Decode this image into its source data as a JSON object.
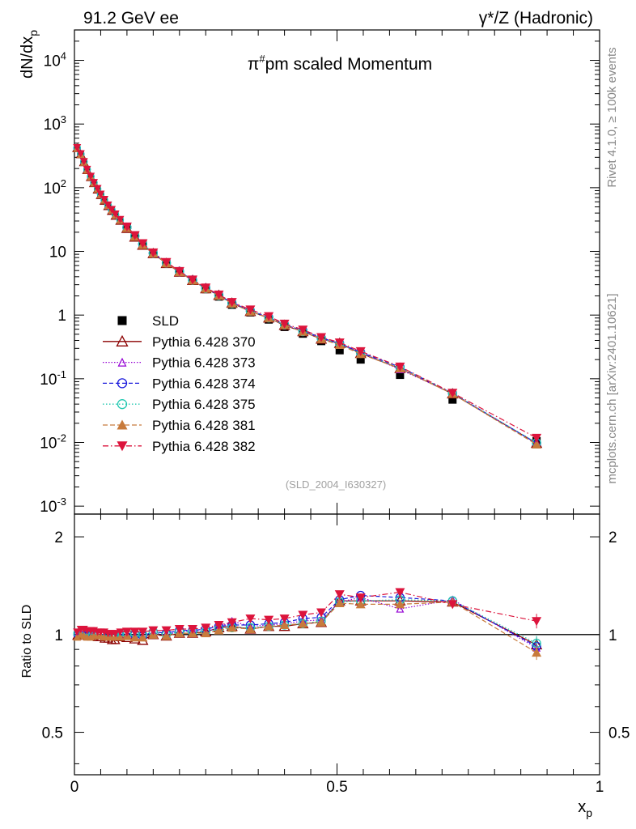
{
  "header": {
    "left": "91.2 GeV ee",
    "right": "γ*/Z (Hadronic)"
  },
  "side": {
    "rivet": "Rivet 4.1.0, ≥ 100k events",
    "mcplots": "mcplots.cern.ch [arXiv:2401.10621]"
  },
  "chart_data": {
    "type": "scatter",
    "title": "π^#pm scaled Momentum",
    "title_main": "π",
    "title_sup": "#",
    "title_rest": "pm scaled Momentum",
    "analysis_id": "(SLD_2004_I630327)",
    "xlabel": "x",
    "xlabel_sub": "p",
    "ylabel": "dN/dx",
    "ylabel_sub": "p",
    "ratio_ylabel": "Ratio to SLD",
    "xlim": [
      0,
      1
    ],
    "ylim": [
      0.00075,
      30000
    ],
    "ratio_ylim": [
      0.37,
      2.35
    ],
    "x_ticks": [
      "0",
      "0.5",
      "1"
    ],
    "y_ticks": [
      "10^-3",
      "10^-2",
      "10^-1",
      "1",
      "10",
      "10^2",
      "10^3",
      "10^4"
    ],
    "ratio_ticks": [
      "0.5",
      "1",
      "2"
    ],
    "x": [
      0.005,
      0.012,
      0.018,
      0.024,
      0.031,
      0.037,
      0.044,
      0.05,
      0.057,
      0.064,
      0.071,
      0.078,
      0.087,
      0.1,
      0.115,
      0.13,
      0.15,
      0.175,
      0.2,
      0.225,
      0.25,
      0.275,
      0.3,
      0.335,
      0.37,
      0.4,
      0.435,
      0.47,
      0.505,
      0.545,
      0.62,
      0.72,
      0.88
    ],
    "series": [
      {
        "name": "SLD",
        "values": [
          420,
          330,
          250,
          190,
          148,
          118,
          95,
          78,
          64,
          53,
          45,
          38,
          31,
          23.5,
          17.3,
          13,
          9.2,
          6.5,
          4.7,
          3.45,
          2.55,
          1.95,
          1.45,
          1.1,
          0.85,
          0.65,
          0.51,
          0.39,
          0.28,
          0.2,
          0.115,
          0.047,
          0.0105
        ],
        "ratio": [
          1,
          1,
          1,
          1,
          1,
          1,
          1,
          1,
          1,
          1,
          1,
          1,
          1,
          1,
          1,
          1,
          1,
          1,
          1,
          1,
          1,
          1,
          1,
          1,
          1,
          1,
          1,
          1,
          1,
          1,
          1,
          1,
          1
        ]
      },
      {
        "name": "Pythia 6.428 370",
        "values": [
          415,
          333,
          250,
          188,
          146,
          117,
          93,
          76,
          62,
          51,
          43,
          36,
          30,
          23,
          16.8,
          12.5,
          9.25,
          6.45,
          4.73,
          3.5,
          2.6,
          2.04,
          1.54,
          1.14,
          0.9,
          0.69,
          0.55,
          0.42,
          0.36,
          0.25,
          0.145,
          0.058,
          0.0097
        ],
        "ratio": [
          0.99,
          1.01,
          1.0,
          0.99,
          0.99,
          0.99,
          0.98,
          0.98,
          0.97,
          0.97,
          0.96,
          0.96,
          0.98,
          0.98,
          0.97,
          0.96,
          1.0,
          0.99,
          1.01,
          1.01,
          1.02,
          1.05,
          1.06,
          1.04,
          1.06,
          1.06,
          1.08,
          1.09,
          1.27,
          1.27,
          1.27,
          1.26,
          0.93
        ]
      },
      {
        "name": "Pythia 6.428 373",
        "values": [
          420,
          338,
          255,
          191,
          149,
          119,
          95,
          78,
          63,
          52,
          44,
          37,
          30.5,
          23.5,
          17.2,
          12.8,
          9.3,
          6.5,
          4.8,
          3.55,
          2.6,
          2.05,
          1.6,
          1.16,
          0.91,
          0.7,
          0.56,
          0.43,
          0.35,
          0.26,
          0.14,
          0.059,
          0.0098
        ],
        "ratio": [
          1.0,
          1.02,
          1.02,
          1.0,
          1.0,
          1.0,
          0.99,
          0.99,
          0.99,
          0.98,
          0.98,
          0.98,
          0.99,
          1.0,
          0.99,
          0.98,
          1.01,
          1.0,
          1.02,
          1.03,
          1.02,
          1.05,
          1.1,
          1.06,
          1.07,
          1.08,
          1.1,
          1.11,
          1.26,
          1.3,
          1.2,
          1.28,
          0.91
        ]
      },
      {
        "name": "Pythia 6.428 374",
        "values": [
          418,
          336,
          254,
          192,
          149,
          119,
          95,
          78,
          64,
          52,
          44.5,
          37.5,
          31,
          23.7,
          17.4,
          13,
          9.4,
          6.6,
          4.85,
          3.55,
          2.65,
          2.06,
          1.55,
          1.17,
          0.92,
          0.71,
          0.57,
          0.44,
          0.36,
          0.26,
          0.152,
          0.059,
          0.0097
        ],
        "ratio": [
          1.0,
          1.02,
          1.02,
          1.01,
          1.0,
          1.0,
          1.0,
          1.0,
          1.0,
          0.99,
          0.99,
          0.99,
          1.0,
          1.01,
          1.0,
          0.99,
          1.02,
          1.01,
          1.03,
          1.03,
          1.04,
          1.06,
          1.07,
          1.07,
          1.08,
          1.09,
          1.12,
          1.13,
          1.28,
          1.32,
          1.3,
          1.27,
          0.92
        ]
      },
      {
        "name": "Pythia 6.428 375",
        "values": [
          422,
          340,
          256,
          193,
          150,
          120,
          96,
          79,
          64.5,
          53,
          45,
          38,
          31.2,
          23.8,
          17.5,
          13.1,
          9.35,
          6.55,
          4.8,
          3.52,
          2.6,
          2.02,
          1.52,
          1.15,
          0.9,
          0.7,
          0.55,
          0.43,
          0.35,
          0.25,
          0.148,
          0.059,
          0.0099
        ],
        "ratio": [
          1.01,
          1.03,
          1.02,
          1.02,
          1.01,
          1.02,
          1.01,
          1.01,
          1.01,
          1.0,
          1.0,
          1.0,
          1.01,
          1.01,
          1.01,
          1.0,
          1.02,
          1.0,
          1.02,
          1.02,
          1.02,
          1.04,
          1.05,
          1.05,
          1.06,
          1.07,
          1.08,
          1.1,
          1.26,
          1.27,
          1.28,
          1.27,
          0.94
        ]
      },
      {
        "name": "Pythia 6.428 381",
        "values": [
          410,
          330,
          248,
          187,
          146,
          117,
          94,
          77,
          63,
          52,
          44,
          37,
          30.5,
          23.3,
          17,
          12.7,
          9.3,
          6.5,
          4.75,
          3.5,
          2.6,
          2.02,
          1.52,
          1.14,
          0.9,
          0.7,
          0.55,
          0.42,
          0.34,
          0.245,
          0.145,
          0.058,
          0.0093
        ],
        "ratio": [
          0.98,
          1.0,
          0.99,
          0.98,
          0.98,
          0.99,
          0.99,
          0.99,
          0.98,
          0.98,
          0.98,
          0.98,
          0.98,
          0.99,
          0.98,
          0.98,
          1.0,
          0.99,
          1.01,
          1.01,
          1.01,
          1.03,
          1.05,
          1.04,
          1.06,
          1.07,
          1.08,
          1.09,
          1.25,
          1.24,
          1.24,
          1.26,
          0.88
        ]
      },
      {
        "name": "Pythia 6.428 382",
        "values": [
          430,
          345,
          260,
          196,
          153,
          122,
          98,
          80,
          66,
          54,
          46,
          39,
          32,
          24.5,
          18,
          13.4,
          9.6,
          6.8,
          4.9,
          3.6,
          2.7,
          2.1,
          1.6,
          1.22,
          0.96,
          0.73,
          0.59,
          0.45,
          0.37,
          0.27,
          0.155,
          0.06,
          0.0118
        ],
        "ratio": [
          1.02,
          1.04,
          1.04,
          1.03,
          1.03,
          1.03,
          1.02,
          1.02,
          1.02,
          1.01,
          1.01,
          1.01,
          1.02,
          1.02,
          1.02,
          1.02,
          1.03,
          1.03,
          1.04,
          1.04,
          1.05,
          1.07,
          1.09,
          1.12,
          1.11,
          1.12,
          1.15,
          1.17,
          1.33,
          1.3,
          1.35,
          1.24,
          1.1
        ]
      }
    ],
    "legend_position": "left-middle"
  },
  "styles": {
    "SLD": {
      "color": "#000000",
      "marker": "square-filled",
      "dash": ""
    },
    "Pythia 6.428 370": {
      "color": "#8b0000",
      "marker": "triangle-open",
      "dash": ""
    },
    "Pythia 6.428 373": {
      "color": "#9400d3",
      "marker": "triangle-open-small",
      "dash": "1.5,2"
    },
    "Pythia 6.428 374": {
      "color": "#1a1adc",
      "marker": "circle-open",
      "dash": "5,3"
    },
    "Pythia 6.428 375": {
      "color": "#20c8b0",
      "marker": "circle-open",
      "dash": "1.5,2.5"
    },
    "Pythia 6.428 381": {
      "color": "#c87b3c",
      "marker": "triangle-filled",
      "dash": "6,3"
    },
    "Pythia 6.428 382": {
      "color": "#dc143c",
      "marker": "triangle-down-filled",
      "dash": "7,3,1.5,3"
    }
  }
}
